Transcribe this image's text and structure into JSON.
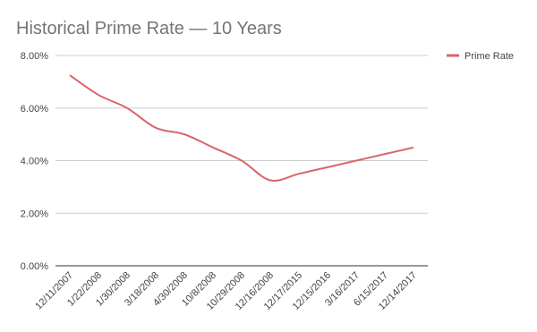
{
  "chart_data": {
    "type": "line",
    "title": "Historical Prime Rate — 10 Years",
    "categories": [
      "12/11/2007",
      "1/22/2008",
      "1/30/2008",
      "3/18/2008",
      "4/30/2008",
      "10/8/2008",
      "10/29/2008",
      "12/16/2008",
      "12/17/2015",
      "12/15/2016",
      "3/16/2017",
      "6/15/2017",
      "12/14/2017"
    ],
    "series": [
      {
        "name": "Prime Rate",
        "color": "#d86668",
        "values": [
          7.25,
          6.5,
          6.0,
          5.25,
          5.0,
          4.5,
          4.0,
          3.25,
          3.5,
          3.75,
          4.0,
          4.25,
          4.5
        ]
      }
    ],
    "ylim": [
      0,
      8
    ],
    "yticks": [
      {
        "value": 0,
        "label": "0.00%"
      },
      {
        "value": 2,
        "label": "2.00%"
      },
      {
        "value": 4,
        "label": "4.00%"
      },
      {
        "value": 6,
        "label": "6.00%"
      },
      {
        "value": 8,
        "label": "8.00%"
      }
    ],
    "grid": true,
    "legend": "right",
    "smooth": true
  }
}
